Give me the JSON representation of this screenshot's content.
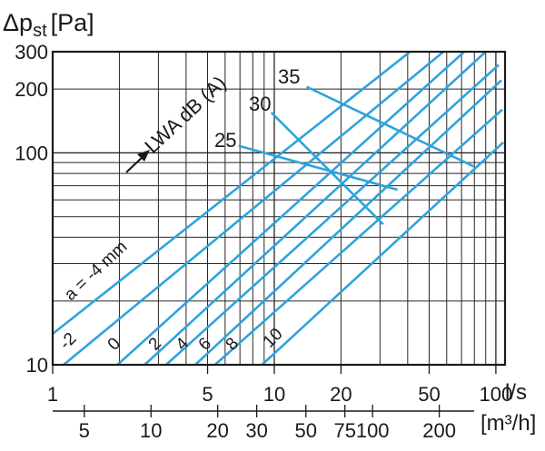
{
  "chart_data": {
    "type": "line",
    "title": "",
    "ylabel": "Δp",
    "ylabel_sub": "st",
    "ylabel_unit": "[Pa]",
    "yscale": "log",
    "ylim": [
      10,
      300
    ],
    "yticks": [
      "300",
      "200",
      "100",
      "10"
    ],
    "xscale": "log",
    "xlim": [
      1,
      110
    ],
    "x_unit": "l/s",
    "x_ticks_ls": [
      "1",
      "5",
      "10",
      "20",
      "50",
      "100"
    ],
    "x2_unit": "[m³/h]",
    "x2_ticks": [
      "5",
      "10",
      "20",
      "30",
      "50",
      "75",
      "100",
      "200"
    ],
    "grid": true,
    "series": [
      {
        "name": "a = -4 mm",
        "x": [
          1,
          41
        ],
        "y": [
          14,
          300
        ]
      },
      {
        "name": "-2",
        "x": [
          1.12,
          58
        ],
        "y": [
          10,
          300
        ]
      },
      {
        "name": "0",
        "x": [
          1.96,
          72
        ],
        "y": [
          10,
          300
        ]
      },
      {
        "name": "2",
        "x": [
          2.6,
          90
        ],
        "y": [
          10,
          300
        ]
      },
      {
        "name": "4",
        "x": [
          3.25,
          103
        ],
        "y": [
          10,
          260
        ]
      },
      {
        "name": "6",
        "x": [
          4.4,
          106
        ],
        "y": [
          10,
          220
        ]
      },
      {
        "name": "8",
        "x": [
          5.4,
          107
        ],
        "y": [
          10,
          160
        ]
      },
      {
        "name": "10",
        "x": [
          8.8,
          108
        ],
        "y": [
          10,
          112
        ]
      }
    ],
    "sound_level_lines": [
      {
        "name": "25",
        "x": [
          6.9,
          36
        ],
        "y": [
          108,
          67
        ]
      },
      {
        "name": "30",
        "x": [
          9.7,
          31
        ],
        "y": [
          155,
          46
        ]
      },
      {
        "name": "35",
        "x": [
          14,
          80
        ],
        "y": [
          205,
          86
        ]
      }
    ],
    "annotations": {
      "sound_axis": "LWA dB (A)",
      "arrow_label_level": "25"
    }
  }
}
